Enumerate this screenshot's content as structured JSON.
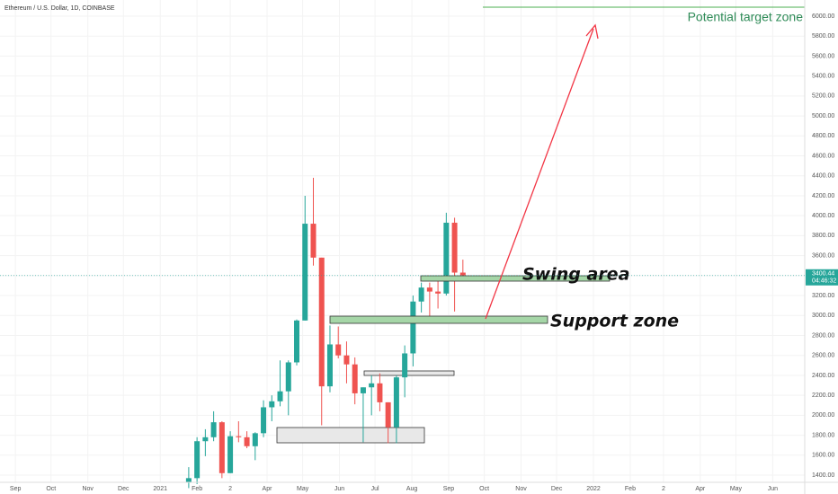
{
  "chart_data": {
    "type": "candlestick",
    "title": "Ethereum / U.S. Dollar, 1D, COINBASE",
    "annotations": {
      "target": "Potential target zone",
      "swing": "Swing area",
      "support": "Support zone"
    },
    "last_price": {
      "value": 3400.44,
      "label": "3400.44"
    },
    "countdown": "04:46:32",
    "up_color": "#26a69a",
    "down_color": "#ef5350",
    "x": [
      146,
      153,
      160,
      167,
      174,
      181,
      188,
      195,
      202,
      209,
      216,
      223,
      230,
      237,
      244,
      251,
      258,
      265,
      272,
      279,
      286,
      293,
      300,
      307,
      314,
      321,
      328,
      335,
      342,
      349,
      356,
      363,
      370,
      377
    ],
    "open": [
      1330,
      1370,
      1740,
      1780,
      1930,
      1420,
      1790,
      1780,
      1690,
      1820,
      2080,
      2140,
      2240,
      2530,
      2950,
      3920,
      3580,
      2290,
      2710,
      2600,
      2510,
      2220,
      2280,
      2320,
      2130,
      1880,
      2380,
      2620,
      3140,
      3280,
      3240,
      3220,
      3930,
      3430
    ],
    "high": [
      1480,
      1780,
      1860,
      2040,
      1940,
      1840,
      1940,
      1840,
      1830,
      2150,
      2200,
      2550,
      2550,
      2960,
      4200,
      4380,
      3580,
      2900,
      2890,
      2740,
      2580,
      2280,
      2400,
      2420,
      2130,
      2400,
      2700,
      3200,
      3330,
      3330,
      3370,
      4030,
      3980,
      3560
    ],
    "low": [
      1270,
      1310,
      1590,
      1740,
      1370,
      1420,
      1730,
      1670,
      1550,
      1780,
      1940,
      2090,
      2000,
      2500,
      2950,
      3500,
      1900,
      2230,
      2570,
      2320,
      2110,
      1730,
      2000,
      2040,
      1720,
      1720,
      2180,
      2490,
      3030,
      2950,
      3070,
      3200,
      3040,
      3360
    ],
    "close": [
      1370,
      1740,
      1780,
      1930,
      1420,
      1790,
      1780,
      1690,
      1820,
      2080,
      2140,
      2240,
      2530,
      2950,
      3920,
      3580,
      2290,
      2710,
      2600,
      2510,
      2220,
      2280,
      2320,
      2130,
      1880,
      2380,
      2620,
      3140,
      3280,
      3240,
      3220,
      3930,
      3430,
      3400
    ],
    "xlim": [
      -13,
      665
    ],
    "xticks": [
      {
        "value": 0,
        "label": "Sep"
      },
      {
        "value": 30,
        "label": "Oct"
      },
      {
        "value": 61,
        "label": "Nov"
      },
      {
        "value": 91,
        "label": "Dec"
      },
      {
        "value": 122,
        "label": "2021"
      },
      {
        "value": 153,
        "label": "Feb"
      },
      {
        "value": 181,
        "label": "2"
      },
      {
        "value": 212,
        "label": "Apr"
      },
      {
        "value": 242,
        "label": "May"
      },
      {
        "value": 273,
        "label": "Jun"
      },
      {
        "value": 303,
        "label": "Jul"
      },
      {
        "value": 334,
        "label": "Aug"
      },
      {
        "value": 365,
        "label": "Sep"
      },
      {
        "value": 395,
        "label": "Oct"
      },
      {
        "value": 426,
        "label": "Nov"
      },
      {
        "value": 456,
        "label": "Dec"
      },
      {
        "value": 487,
        "label": "2022"
      },
      {
        "value": 518,
        "label": "Feb"
      },
      {
        "value": 546,
        "label": "2"
      },
      {
        "value": 577,
        "label": "Apr"
      },
      {
        "value": 607,
        "label": "May"
      },
      {
        "value": 638,
        "label": "Jun"
      }
    ],
    "ylim": [
      1328,
      6162
    ],
    "yticks": [
      {
        "value": 1400,
        "label": "1400.00"
      },
      {
        "value": 1600,
        "label": "1600.00"
      },
      {
        "value": 1800,
        "label": "1800.00"
      },
      {
        "value": 2000,
        "label": "2000.00"
      },
      {
        "value": 2200,
        "label": "2200.00"
      },
      {
        "value": 2400,
        "label": "2400.00"
      },
      {
        "value": 2600,
        "label": "2600.00"
      },
      {
        "value": 2800,
        "label": "2800.00"
      },
      {
        "value": 3000,
        "label": "3000.00"
      },
      {
        "value": 3200,
        "label": "3200.00"
      },
      {
        "value": 3400,
        "label": "3400.00"
      },
      {
        "value": 3600,
        "label": "3600.00"
      },
      {
        "value": 3800,
        "label": "3800.00"
      },
      {
        "value": 4000,
        "label": "4000.00"
      },
      {
        "value": 4200,
        "label": "4200.00"
      },
      {
        "value": 4400,
        "label": "4400.00"
      },
      {
        "value": 4600,
        "label": "4600.00"
      },
      {
        "value": 4800,
        "label": "4800.00"
      },
      {
        "value": 5000,
        "label": "5000.00"
      },
      {
        "value": 5200,
        "label": "5200.00"
      },
      {
        "value": 5400,
        "label": "5400.00"
      },
      {
        "value": 5600,
        "label": "5600.00"
      },
      {
        "value": 5800,
        "label": "5800.00"
      },
      {
        "value": 6000,
        "label": "6000.00"
      }
    ]
  }
}
